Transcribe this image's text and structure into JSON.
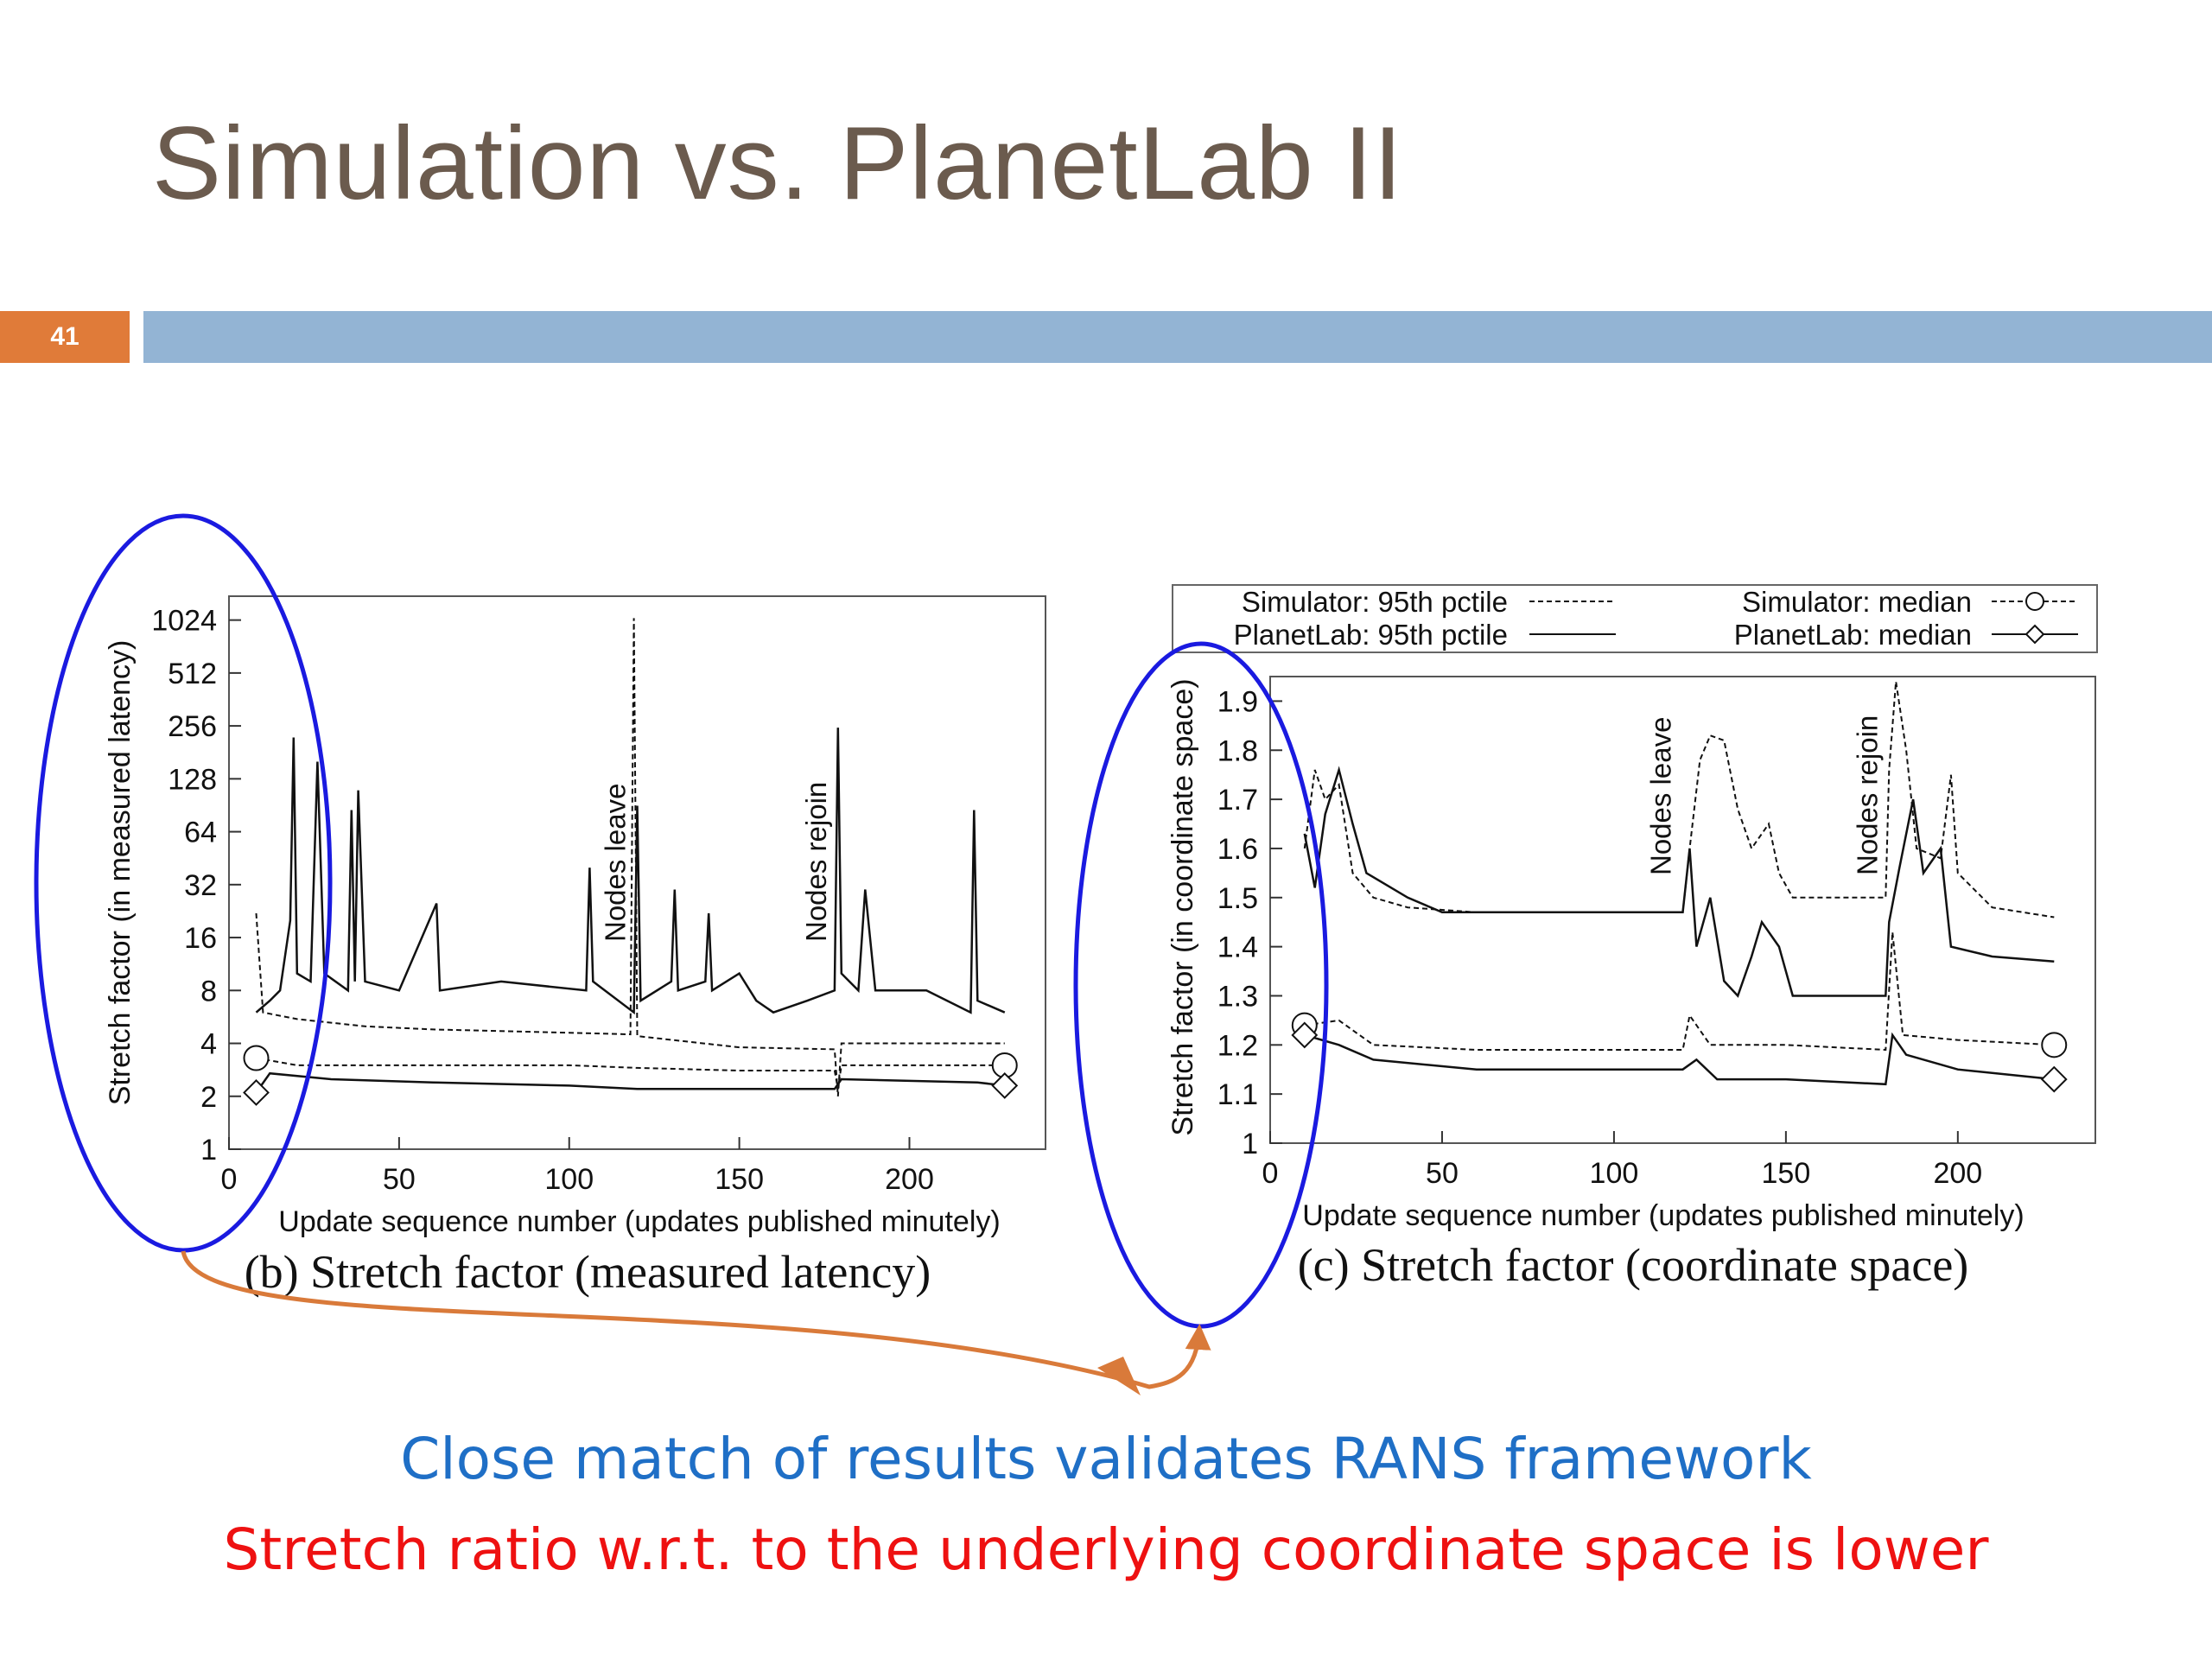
{
  "slide": {
    "title": "Simulation vs. PlanetLab II",
    "page_number": "41",
    "bottom_text_1": "Close match of results validates RANS framework",
    "bottom_text_2": "Stretch ratio w.r.t. to the underlying coordinate space is lower",
    "colors": {
      "title": "#6b5b4e",
      "badge": "#e07b39",
      "bar": "#93b4d4",
      "highlight": "#1a1ae0",
      "arrow": "#d97a3a",
      "text1": "#1f6fc6",
      "text2": "#ee1111"
    }
  },
  "chart_data": [
    {
      "type": "line",
      "caption": "(b)  Stretch factor (measured latency)",
      "xlabel": "Update sequence number (updates published minutely)",
      "ylabel": "Stretch factor (in measured latency)",
      "xlim": [
        0,
        240
      ],
      "ylim": [
        1,
        1400
      ],
      "yscale": "log2",
      "xticks": [
        "0",
        "50",
        "100",
        "150",
        "200"
      ],
      "yticks": [
        "1",
        "2",
        "4",
        "8",
        "16",
        "32",
        "64",
        "128",
        "256",
        "512",
        "1024"
      ],
      "annotations": [
        {
          "text": "Nodes leave",
          "x": 120
        },
        {
          "text": "Nodes rejoin",
          "x": 179
        }
      ],
      "series": [
        {
          "name": "Simulator: 95th pctile",
          "style": "dashed",
          "points": [
            [
              8,
              22
            ],
            [
              10,
              6
            ],
            [
              20,
              5.5
            ],
            [
              40,
              5
            ],
            [
              60,
              4.8
            ],
            [
              100,
              4.6
            ],
            [
              118,
              4.5
            ],
            [
              119,
              1050
            ],
            [
              120,
              4.4
            ],
            [
              150,
              3.8
            ],
            [
              178,
              3.7
            ],
            [
              179,
              2
            ],
            [
              180,
              4
            ],
            [
              220,
              4
            ],
            [
              228,
              4
            ]
          ]
        },
        {
          "name": "PlanetLab: 95th pctile",
          "style": "solid",
          "points": [
            [
              8,
              6
            ],
            [
              12,
              7
            ],
            [
              15,
              8
            ],
            [
              18,
              20
            ],
            [
              19,
              220
            ],
            [
              20,
              10
            ],
            [
              24,
              9
            ],
            [
              26,
              160
            ],
            [
              28,
              10
            ],
            [
              35,
              8
            ],
            [
              36,
              85
            ],
            [
              37,
              9
            ],
            [
              38,
              110
            ],
            [
              40,
              9
            ],
            [
              50,
              8
            ],
            [
              61,
              25
            ],
            [
              62,
              8
            ],
            [
              80,
              9
            ],
            [
              105,
              8
            ],
            [
              106,
              40
            ],
            [
              107,
              9
            ],
            [
              119,
              6
            ],
            [
              120,
              90
            ],
            [
              121,
              7
            ],
            [
              130,
              9
            ],
            [
              131,
              30
            ],
            [
              132,
              8
            ],
            [
              140,
              9
            ],
            [
              141,
              22
            ],
            [
              142,
              8
            ],
            [
              150,
              10
            ],
            [
              155,
              7
            ],
            [
              160,
              6
            ],
            [
              170,
              7
            ],
            [
              178,
              8
            ],
            [
              179,
              250
            ],
            [
              180,
              10
            ],
            [
              185,
              8
            ],
            [
              187,
              30
            ],
            [
              190,
              8
            ],
            [
              205,
              8
            ],
            [
              218,
              6
            ],
            [
              219,
              85
            ],
            [
              220,
              7
            ],
            [
              228,
              6
            ]
          ]
        },
        {
          "name": "Simulator: median",
          "style": "dashed-circle",
          "points": [
            [
              8,
              3.3
            ],
            [
              20,
              3
            ],
            [
              50,
              3
            ],
            [
              100,
              3
            ],
            [
              120,
              2.9
            ],
            [
              150,
              2.8
            ],
            [
              178,
              2.8
            ],
            [
              179,
              2.2
            ],
            [
              180,
              3
            ],
            [
              220,
              3
            ],
            [
              228,
              3
            ]
          ]
        },
        {
          "name": "PlanetLab: median",
          "style": "solid-diamond",
          "points": [
            [
              8,
              2.1
            ],
            [
              12,
              2.7
            ],
            [
              30,
              2.5
            ],
            [
              60,
              2.4
            ],
            [
              100,
              2.3
            ],
            [
              120,
              2.2
            ],
            [
              150,
              2.2
            ],
            [
              178,
              2.2
            ],
            [
              180,
              2.5
            ],
            [
              220,
              2.4
            ],
            [
              228,
              2.3
            ]
          ]
        }
      ]
    },
    {
      "type": "line",
      "caption": "(c)  Stretch factor (coordinate space)",
      "xlabel": "Update sequence number (updates published minutely)",
      "ylabel": "Stretch factor (in coordinate space)",
      "xlim": [
        0,
        240
      ],
      "ylim": [
        1,
        1.95
      ],
      "xticks": [
        "0",
        "50",
        "100",
        "150",
        "200"
      ],
      "yticks": [
        "1",
        "1.1",
        "1.2",
        "1.3",
        "1.4",
        "1.5",
        "1.6",
        "1.7",
        "1.8",
        "1.9"
      ],
      "legend": [
        "Simulator: 95th pctile",
        "PlanetLab: 95th pctile",
        "Simulator: median",
        "PlanetLab: median"
      ],
      "legend_position": "top",
      "annotations": [
        {
          "text": "Nodes leave",
          "x": 120
        },
        {
          "text": "Nodes rejoin",
          "x": 180
        }
      ],
      "series": [
        {
          "name": "Simulator: 95th pctile",
          "style": "dashed",
          "points": [
            [
              10,
              1.6
            ],
            [
              13,
              1.76
            ],
            [
              16,
              1.7
            ],
            [
              20,
              1.73
            ],
            [
              24,
              1.55
            ],
            [
              30,
              1.5
            ],
            [
              40,
              1.48
            ],
            [
              60,
              1.47
            ],
            [
              120,
              1.47
            ],
            [
              122,
              1.6
            ],
            [
              125,
              1.78
            ],
            [
              128,
              1.83
            ],
            [
              132,
              1.82
            ],
            [
              136,
              1.68
            ],
            [
              140,
              1.6
            ],
            [
              145,
              1.65
            ],
            [
              148,
              1.55
            ],
            [
              152,
              1.5
            ],
            [
              179,
              1.5
            ],
            [
              180,
              1.76
            ],
            [
              182,
              1.94
            ],
            [
              185,
              1.8
            ],
            [
              188,
              1.6
            ],
            [
              195,
              1.58
            ],
            [
              198,
              1.75
            ],
            [
              200,
              1.55
            ],
            [
              210,
              1.48
            ],
            [
              228,
              1.46
            ]
          ]
        },
        {
          "name": "PlanetLab: 95th pctile",
          "style": "solid",
          "points": [
            [
              10,
              1.63
            ],
            [
              13,
              1.52
            ],
            [
              16,
              1.67
            ],
            [
              20,
              1.76
            ],
            [
              24,
              1.65
            ],
            [
              28,
              1.55
            ],
            [
              40,
              1.5
            ],
            [
              50,
              1.47
            ],
            [
              120,
              1.47
            ],
            [
              122,
              1.6
            ],
            [
              124,
              1.4
            ],
            [
              128,
              1.5
            ],
            [
              132,
              1.33
            ],
            [
              136,
              1.3
            ],
            [
              140,
              1.38
            ],
            [
              143,
              1.45
            ],
            [
              148,
              1.4
            ],
            [
              152,
              1.3
            ],
            [
              179,
              1.3
            ],
            [
              180,
              1.45
            ],
            [
              183,
              1.56
            ],
            [
              187,
              1.7
            ],
            [
              190,
              1.55
            ],
            [
              195,
              1.6
            ],
            [
              198,
              1.4
            ],
            [
              210,
              1.38
            ],
            [
              228,
              1.37
            ]
          ]
        },
        {
          "name": "Simulator: median",
          "style": "dashed-circle",
          "points": [
            [
              10,
              1.24
            ],
            [
              20,
              1.25
            ],
            [
              30,
              1.2
            ],
            [
              60,
              1.19
            ],
            [
              120,
              1.19
            ],
            [
              122,
              1.26
            ],
            [
              128,
              1.2
            ],
            [
              150,
              1.2
            ],
            [
              179,
              1.19
            ],
            [
              181,
              1.43
            ],
            [
              184,
              1.22
            ],
            [
              200,
              1.21
            ],
            [
              228,
              1.2
            ]
          ]
        },
        {
          "name": "PlanetLab: median",
          "style": "solid-diamond",
          "points": [
            [
              10,
              1.22
            ],
            [
              20,
              1.2
            ],
            [
              30,
              1.17
            ],
            [
              60,
              1.15
            ],
            [
              120,
              1.15
            ],
            [
              124,
              1.17
            ],
            [
              130,
              1.13
            ],
            [
              150,
              1.13
            ],
            [
              179,
              1.12
            ],
            [
              181,
              1.22
            ],
            [
              185,
              1.18
            ],
            [
              200,
              1.15
            ],
            [
              228,
              1.13
            ]
          ]
        }
      ]
    }
  ]
}
